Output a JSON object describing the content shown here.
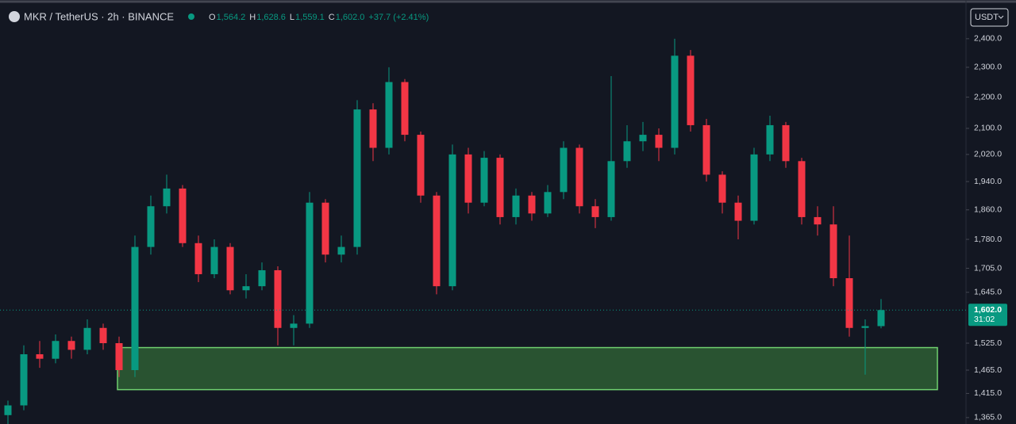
{
  "chart_data": {
    "type": "candlestick",
    "symbol": "MKR / TetherUS · 2h · BINANCE",
    "ohlc_header": [
      {
        "key": "O",
        "value": "1,564.2"
      },
      {
        "key": "H",
        "value": "1,628.6"
      },
      {
        "key": "L",
        "value": "1,559.1"
      },
      {
        "key": "C",
        "value": "1,602.0"
      }
    ],
    "change": "+37.7 (+2.41%)",
    "currency": "USDT",
    "last_price_label": "1,602.0",
    "countdown": "31:02",
    "log_scale": true,
    "up_color": "#089981",
    "down_color": "#f23645",
    "open": [
      1370,
      1390,
      1500,
      1490,
      1530,
      1510,
      1560,
      1525,
      1465,
      1760,
      1870,
      1920,
      1770,
      1690,
      1760,
      1650,
      1660,
      1700,
      1560,
      1570,
      1880,
      1740,
      1760,
      2160,
      2040,
      2250,
      2080,
      1900,
      1660,
      2020,
      1880,
      2010,
      1840,
      1900,
      1850,
      1910,
      2040,
      1870,
      1840,
      2000,
      2060,
      2080,
      2040,
      2340,
      2110,
      1960,
      1880,
      1830,
      2020,
      2110,
      2000,
      1840,
      1820,
      1680,
      1560,
      1564.2
    ],
    "high": [
      1400,
      1520,
      1530,
      1545,
      1540,
      1580,
      1570,
      1540,
      1790,
      1900,
      1960,
      1930,
      1790,
      1780,
      1770,
      1690,
      1720,
      1710,
      1590,
      1910,
      1890,
      1790,
      2190,
      2180,
      2300,
      2260,
      2090,
      1910,
      2050,
      2040,
      2030,
      2020,
      1920,
      1910,
      1930,
      2060,
      2050,
      1890,
      2270,
      2110,
      2120,
      2100,
      2400,
      2360,
      2130,
      1970,
      1900,
      2040,
      2140,
      2120,
      2010,
      1870,
      1870,
      1790,
      1580,
      1628.6
    ],
    "low": [
      1350,
      1380,
      1470,
      1480,
      1490,
      1500,
      1510,
      1450,
      1450,
      1740,
      1850,
      1760,
      1670,
      1680,
      1640,
      1630,
      1650,
      1520,
      1520,
      1560,
      1720,
      1720,
      1740,
      2000,
      2020,
      2060,
      1880,
      1640,
      1650,
      1850,
      1870,
      1820,
      1820,
      1830,
      1840,
      1890,
      1850,
      1810,
      1830,
      1980,
      2030,
      2000,
      2020,
      2090,
      1940,
      1850,
      1780,
      1820,
      2000,
      1980,
      1820,
      1790,
      1660,
      1540,
      1455,
      1559.1
    ],
    "close": [
      1390,
      1500,
      1490,
      1530,
      1510,
      1560,
      1525,
      1465,
      1760,
      1870,
      1920,
      1770,
      1690,
      1760,
      1650,
      1660,
      1700,
      1560,
      1570,
      1880,
      1740,
      1760,
      2160,
      2040,
      2250,
      2080,
      1900,
      1660,
      2020,
      1880,
      2010,
      1840,
      1900,
      1850,
      1910,
      2040,
      1870,
      1840,
      2000,
      2060,
      2080,
      2040,
      2340,
      2110,
      1960,
      1880,
      1830,
      2020,
      2110,
      2000,
      1840,
      1820,
      1680,
      1560,
      1564.2,
      1602.0
    ],
    "zone": {
      "top": 1515,
      "bottom": 1423,
      "color": "#2e5e34"
    },
    "ylim": [
      1352,
      2454
    ],
    "yticks": [
      {
        "value": 2400,
        "label": "2,400.0"
      },
      {
        "value": 2300,
        "label": "2,300.0"
      },
      {
        "value": 2200,
        "label": "2,200.0"
      },
      {
        "value": 2100,
        "label": "2,100.0"
      },
      {
        "value": 2020,
        "label": "2,020.0"
      },
      {
        "value": 1940,
        "label": "1,940.0"
      },
      {
        "value": 1860,
        "label": "1,860.0"
      },
      {
        "value": 1780,
        "label": "1,780.0"
      },
      {
        "value": 1705,
        "label": "1,705.0"
      },
      {
        "value": 1645,
        "label": "1,645.0"
      },
      {
        "value": 1525,
        "label": "1,525.0"
      },
      {
        "value": 1465,
        "label": "1,465.0"
      },
      {
        "value": 1415,
        "label": "1,415.0"
      },
      {
        "value": 1365,
        "label": "1,365.0"
      }
    ]
  }
}
